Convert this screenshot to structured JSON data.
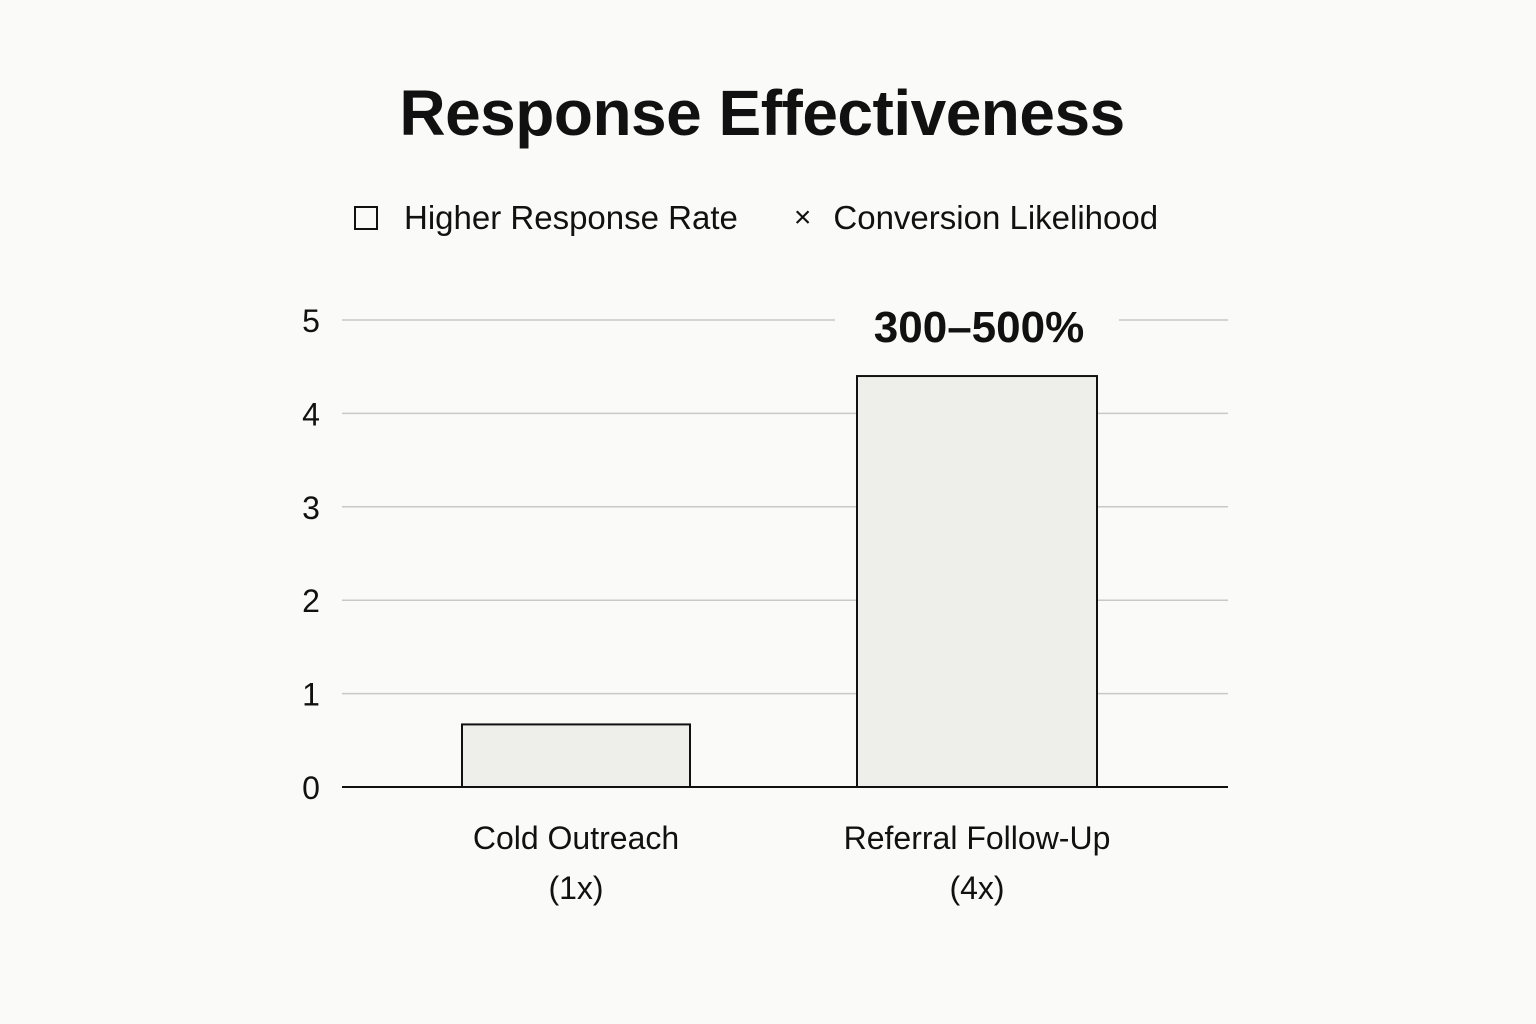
{
  "chart_data": {
    "type": "bar",
    "title": "Response Effectiveness",
    "legend": [
      {
        "marker": "square",
        "label": "Higher Response Rate"
      },
      {
        "marker": "x",
        "label": "Conversion Likelihood"
      }
    ],
    "categories": [
      {
        "line1": "Cold Outreach",
        "line2": "(1x)"
      },
      {
        "line1": "Referral Follow-Up",
        "line2": "(4x)"
      }
    ],
    "values": [
      0.67,
      4.4
    ],
    "annotations": [
      "",
      "300–500%"
    ],
    "ylim": [
      0,
      5
    ],
    "yticks": [
      0,
      1,
      2,
      3,
      4,
      5
    ],
    "ytick_labels": [
      "0",
      "1",
      "2",
      "3",
      "4",
      "5"
    ],
    "grid": true,
    "xlabel": "",
    "ylabel": "",
    "colors": {
      "bar_fill": "#eeeeeb",
      "bar_stroke": "#111111",
      "grid": "#c8c8c8",
      "axis": "#111111",
      "background": "#fafaf8"
    }
  }
}
